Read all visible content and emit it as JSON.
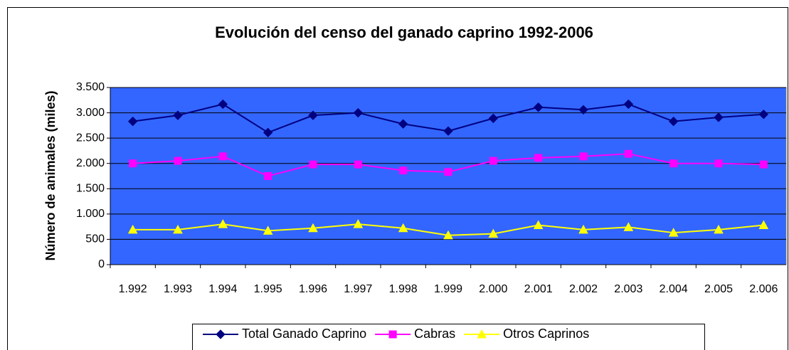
{
  "chart_data": {
    "type": "line",
    "title": "Evolución del censo del ganado caprino 1992-2006",
    "y_label": "Número de animales (miles)",
    "categories": [
      "1.992",
      "1.993",
      "1.994",
      "1.995",
      "1.996",
      "1.997",
      "1.998",
      "1.999",
      "2.000",
      "2.001",
      "2.002",
      "2.003",
      "2.004",
      "2.005",
      "2.006"
    ],
    "series": [
      {
        "name": "Total Ganado Caprino",
        "color": "#000080",
        "marker": "diamond",
        "values": [
          2830,
          2950,
          3170,
          2610,
          2950,
          3000,
          2780,
          2640,
          2890,
          3110,
          3060,
          3170,
          2830,
          2910,
          2970
        ]
      },
      {
        "name": "Cabras",
        "color": "#ff00ff",
        "marker": "square",
        "values": [
          2000,
          2050,
          2140,
          1750,
          1980,
          1980,
          1860,
          1830,
          2050,
          2110,
          2140,
          2190,
          2000,
          2000,
          1980
        ]
      },
      {
        "name": "Otros Caprinos",
        "color": "#ffff00",
        "marker": "triangle",
        "values": [
          690,
          690,
          800,
          670,
          720,
          800,
          720,
          580,
          610,
          780,
          690,
          740,
          630,
          690,
          780
        ]
      }
    ],
    "ylim": [
      0,
      3500
    ],
    "yticks": [
      0,
      500,
      {
        "value": 1000,
        "label": "1.000"
      },
      {
        "value": 1500,
        "label": "1.500"
      },
      {
        "value": 2000,
        "label": "2.000"
      },
      {
        "value": 2500,
        "label": "2.500"
      },
      {
        "value": 3000,
        "label": "3.000"
      },
      {
        "value": 3500,
        "label": "3.500"
      }
    ],
    "grid": true,
    "plot_background": "#3366ff",
    "legend": "bottom"
  }
}
